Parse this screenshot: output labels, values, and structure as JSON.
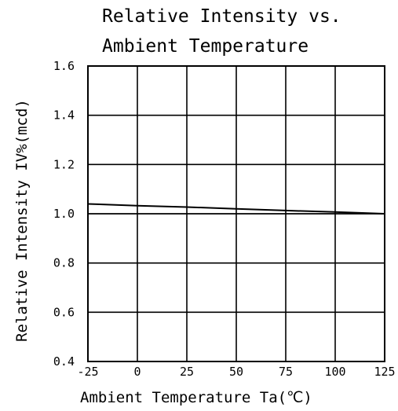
{
  "chart_data": {
    "type": "line",
    "title_lines": [
      "Relative Intensity vs.",
      "Ambient Temperature"
    ],
    "xlabel": "Ambient Temperature Ta(℃)",
    "ylabel": "Relative Intensity IV%(mcd)",
    "xlim": [
      -25,
      125
    ],
    "ylim": [
      0.4,
      1.6
    ],
    "x_ticks": [
      -25,
      0,
      25,
      50,
      75,
      100,
      125
    ],
    "x_tick_labels": [
      "-25",
      "0",
      "25",
      "50",
      "75",
      "100",
      "125"
    ],
    "y_ticks": [
      0.4,
      0.6,
      0.8,
      1.0,
      1.2,
      1.4,
      1.6
    ],
    "y_tick_labels": [
      "0.4",
      "0.6",
      "0.8",
      "1.0",
      "1.2",
      "1.4",
      "1.6"
    ],
    "grid": true,
    "reference_line": 1.0,
    "series": [
      {
        "x": [
          -25,
          0,
          25,
          50,
          75,
          100,
          125
        ],
        "y": [
          1.04,
          1.033,
          1.027,
          1.02,
          1.013,
          1.007,
          1.0
        ]
      }
    ]
  }
}
